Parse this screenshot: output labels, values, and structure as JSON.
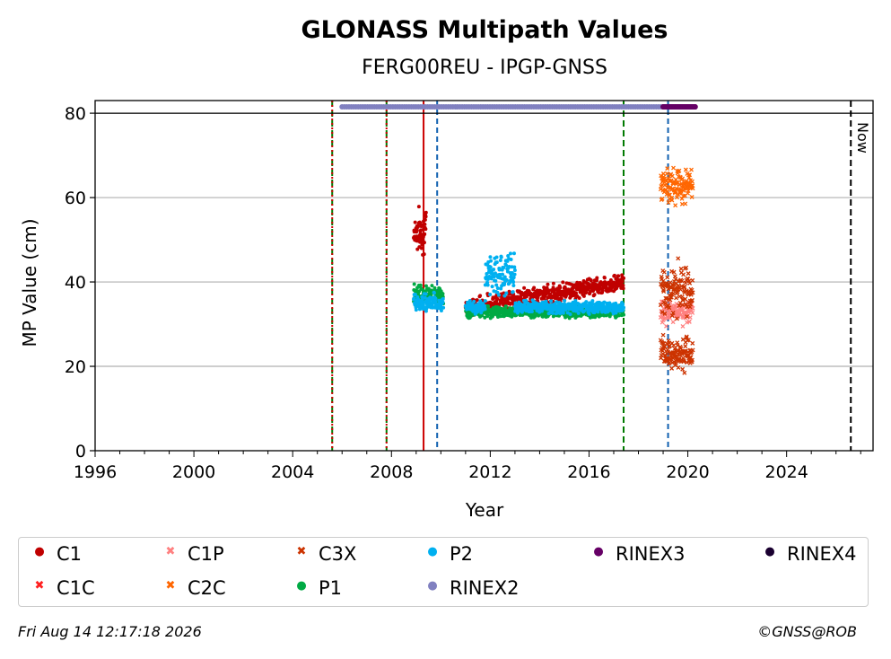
{
  "chart_data": {
    "type": "scatter",
    "title": "GLONASS Multipath Values",
    "subtitle": "FERG00REU - IPGP-GNSS",
    "xlabel": "Year",
    "ylabel": "MP Value (cm)",
    "xlim": [
      1996,
      2027.5
    ],
    "ylim": [
      0,
      83
    ],
    "xticks": [
      "1996",
      "2000",
      "2004",
      "2008",
      "2012",
      "2016",
      "2020",
      "2024"
    ],
    "yticks": [
      "0",
      "20",
      "40",
      "60",
      "80"
    ],
    "grid": "horizontal",
    "now_label": "Now",
    "now_x": 2026.6,
    "event_lines": [
      {
        "x": 2005.6,
        "style": "green-dashed"
      },
      {
        "x": 2005.6,
        "style": "red-dotted"
      },
      {
        "x": 2007.8,
        "style": "green-dashed"
      },
      {
        "x": 2007.8,
        "style": "red-dotted"
      },
      {
        "x": 2009.3,
        "style": "red-solid"
      },
      {
        "x": 2009.85,
        "style": "blue-dashed"
      },
      {
        "x": 2017.4,
        "style": "green-dashed"
      },
      {
        "x": 2019.2,
        "style": "blue-dashed"
      }
    ],
    "series": [
      {
        "name": "C1",
        "color": "#c00000",
        "marker": "dot",
        "segments": [
          {
            "x": [
              2008.9,
              2009.4
            ],
            "mean": 52,
            "spread": 7
          },
          {
            "x": [
              2011.0,
              2017.4
            ],
            "mean_start": 34,
            "mean_end": 40,
            "spread": 3
          }
        ]
      },
      {
        "name": "C1C",
        "color": "#ff2020",
        "marker": "x",
        "segments": []
      },
      {
        "name": "C1P",
        "color": "#ff8080",
        "marker": "x",
        "segments": [
          {
            "x": [
              2018.9,
              2020.2
            ],
            "mean": 33,
            "spread": 4
          }
        ]
      },
      {
        "name": "C2C",
        "color": "#ff6600",
        "marker": "x",
        "segments": [
          {
            "x": [
              2018.9,
              2020.2
            ],
            "mean": 63,
            "spread": 6
          }
        ]
      },
      {
        "name": "C3X",
        "color": "#cc3300",
        "marker": "x",
        "segments": [
          {
            "x": [
              2018.9,
              2020.2
            ],
            "mean": 23,
            "spread": 5
          },
          {
            "x": [
              2018.9,
              2020.2
            ],
            "mean": 38,
            "spread": 8
          }
        ]
      },
      {
        "name": "P1",
        "color": "#00aa44",
        "marker": "dot",
        "segments": [
          {
            "x": [
              2008.9,
              2010.1
            ],
            "mean": 37,
            "spread": 3
          },
          {
            "x": [
              2011.0,
              2017.4
            ],
            "mean": 33,
            "spread": 2
          }
        ]
      },
      {
        "name": "P2",
        "color": "#00b0f0",
        "marker": "dot",
        "segments": [
          {
            "x": [
              2008.9,
              2010.1
            ],
            "mean": 35,
            "spread": 3
          },
          {
            "x": [
              2011.0,
              2011.8
            ],
            "mean": 34,
            "spread": 2
          },
          {
            "x": [
              2011.8,
              2013.0
            ],
            "mean": 42,
            "spread": 7
          },
          {
            "x": [
              2013.0,
              2017.4
            ],
            "mean": 34,
            "spread": 2
          }
        ]
      },
      {
        "name": "RINEX2",
        "color": "#8080c0",
        "marker": "dot",
        "segments": [
          {
            "x": [
              2006.0,
              2019.0
            ],
            "y": 81.5
          }
        ]
      },
      {
        "name": "RINEX3",
        "color": "#660066",
        "marker": "dot",
        "segments": [
          {
            "x": [
              2019.0,
              2020.3
            ],
            "y": 81.5
          }
        ]
      },
      {
        "name": "RINEX4",
        "color": "#1a0030",
        "marker": "dot",
        "segments": []
      }
    ]
  },
  "legend": {
    "items": [
      {
        "label": "C1",
        "color": "#c00000",
        "marker": "●"
      },
      {
        "label": "C1P",
        "color": "#ff8080",
        "marker": "✖"
      },
      {
        "label": "C3X",
        "color": "#cc3300",
        "marker": "✖"
      },
      {
        "label": "P2",
        "color": "#00b0f0",
        "marker": "●"
      },
      {
        "label": "RINEX3",
        "color": "#660066",
        "marker": "●"
      },
      {
        "label": "RINEX4",
        "color": "#1a0030",
        "marker": "●"
      },
      {
        "label": "C1C",
        "color": "#ff2020",
        "marker": "✖"
      },
      {
        "label": "C2C",
        "color": "#ff6600",
        "marker": "✖"
      },
      {
        "label": "P1",
        "color": "#00aa44",
        "marker": "●"
      },
      {
        "label": "RINEX2",
        "color": "#8080c0",
        "marker": "●"
      }
    ]
  },
  "footer": {
    "timestamp": "Fri Aug 14 12:17:18 2026",
    "copyright": "©GNSS@ROB"
  }
}
